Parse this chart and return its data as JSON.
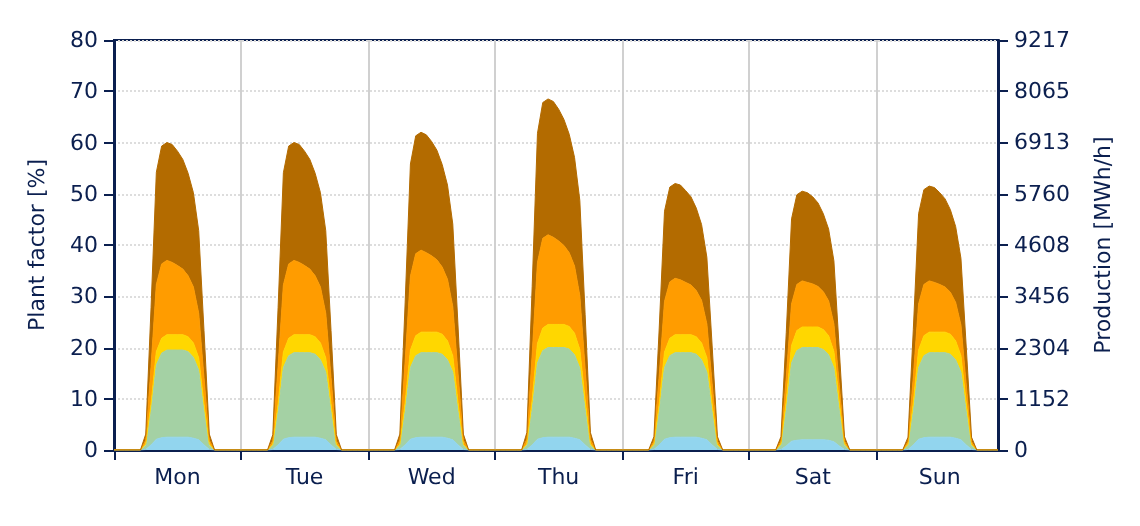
{
  "chart_data": {
    "type": "area",
    "stacked": true,
    "ylabel": "Plant factor [%]",
    "y2label": "Production [MWh/h]",
    "categories": [
      null,
      null,
      null,
      null,
      null,
      null,
      null,
      null,
      null,
      null,
      null,
      null,
      "Mon",
      null,
      null,
      null,
      null,
      null,
      null,
      null,
      null,
      null,
      null,
      null,
      null,
      null,
      null,
      null,
      null,
      null,
      null,
      null,
      null,
      null,
      null,
      null,
      "Tue",
      null,
      null,
      null,
      null,
      null,
      null,
      null,
      null,
      null,
      null,
      null,
      null,
      null,
      null,
      null,
      null,
      null,
      null,
      null,
      null,
      null,
      null,
      null,
      "Wed",
      null,
      null,
      null,
      null,
      null,
      null,
      null,
      null,
      null,
      null,
      null,
      null,
      null,
      null,
      null,
      null,
      null,
      null,
      null,
      null,
      null,
      null,
      null,
      "Thu",
      null,
      null,
      null,
      null,
      null,
      null,
      null,
      null,
      null,
      null,
      null,
      null,
      null,
      null,
      null,
      null,
      null,
      null,
      null,
      null,
      null,
      null,
      null,
      "Fri",
      null,
      null,
      null,
      null,
      null,
      null,
      null,
      null,
      null,
      null,
      null,
      null,
      null,
      null,
      null,
      null,
      null,
      null,
      null,
      null,
      null,
      null,
      null,
      "Sat",
      null,
      null,
      null,
      null,
      null,
      null,
      null,
      null,
      null,
      null,
      null,
      null,
      null,
      null,
      null,
      null,
      null,
      null,
      null,
      null,
      null,
      null,
      null,
      "Sun",
      null,
      null,
      null,
      null,
      null,
      null,
      null,
      null,
      null,
      null,
      null
    ],
    "ylim": [
      0,
      80
    ],
    "yticks": [
      0,
      10,
      20,
      30,
      40,
      50,
      60,
      70,
      80
    ],
    "y2lim": [
      0,
      9217
    ],
    "y2ticks": [
      0,
      1152,
      2304,
      3456,
      4608,
      5760,
      6913,
      8065,
      9217
    ],
    "grid": true,
    "series": [
      {
        "color": "#92d5ee",
        "values": [
          0,
          0,
          0,
          0,
          0,
          0,
          0.1,
          1,
          2.1,
          2.4,
          2.5,
          2.5,
          2.5,
          2.5,
          2.5,
          2.3,
          2,
          1,
          0.1,
          0,
          0,
          0,
          0,
          0,
          0,
          0,
          0,
          0,
          0,
          0,
          0.1,
          1,
          2.1,
          2.4,
          2.5,
          2.5,
          2.5,
          2.5,
          2.5,
          2.3,
          2,
          1,
          0.1,
          0,
          0,
          0,
          0,
          0,
          0,
          0,
          0,
          0,
          0,
          0,
          0.1,
          1,
          2.1,
          2.4,
          2.5,
          2.5,
          2.5,
          2.5,
          2.5,
          2.3,
          2,
          1,
          0.1,
          0,
          0,
          0,
          0,
          0,
          0,
          0,
          0,
          0,
          0,
          0,
          0.1,
          1,
          2.1,
          2.4,
          2.5,
          2.5,
          2.5,
          2.5,
          2.5,
          2.3,
          2,
          1,
          0.1,
          0,
          0,
          0,
          0,
          0,
          0,
          0,
          0,
          0,
          0,
          0,
          0.1,
          1,
          2.1,
          2.4,
          2.5,
          2.5,
          2.5,
          2.5,
          2.5,
          2.3,
          2,
          1,
          0.1,
          0,
          0,
          0,
          0,
          0,
          0,
          0,
          0,
          0,
          0,
          0,
          0.1,
          0.8,
          1.7,
          1.9,
          2,
          2,
          2,
          2,
          2,
          1.9,
          1.6,
          0.8,
          0.1,
          0,
          0,
          0,
          0,
          0,
          0,
          0,
          0,
          0,
          0,
          0,
          0.1,
          1,
          2.1,
          2.4,
          2.5,
          2.5,
          2.5,
          2.5,
          2.5,
          2.3,
          2,
          1,
          0.1,
          0,
          0,
          0,
          0,
          0
        ]
      },
      {
        "color": "#a4d1a4",
        "values": [
          0,
          0,
          0,
          0,
          0,
          0,
          0.9,
          6.8,
          14.5,
          16.5,
          17,
          17,
          17,
          17,
          16.7,
          15.8,
          13.6,
          6.8,
          0.9,
          0,
          0,
          0,
          0,
          0,
          0,
          0,
          0,
          0,
          0,
          0,
          0.8,
          6.6,
          14,
          16,
          16.5,
          16.5,
          16.5,
          16.5,
          16.2,
          15.3,
          13.2,
          6.6,
          0.8,
          0,
          0,
          0,
          0,
          0,
          0,
          0,
          0,
          0,
          0,
          0,
          0.8,
          6.6,
          14,
          16,
          16.5,
          16.5,
          16.5,
          16.5,
          16.2,
          15.3,
          13.2,
          6.6,
          0.8,
          0,
          0,
          0,
          0,
          0,
          0,
          0,
          0,
          0,
          0,
          0,
          0.9,
          7,
          14.9,
          17,
          17.5,
          17.5,
          17.5,
          17.5,
          17.2,
          16.3,
          14,
          7,
          0.9,
          0,
          0,
          0,
          0,
          0,
          0,
          0,
          0,
          0,
          0,
          0,
          0.8,
          6.6,
          14,
          16,
          16.5,
          16.5,
          16.5,
          16.5,
          16.2,
          15.3,
          13.2,
          6.6,
          0.8,
          0,
          0,
          0,
          0,
          0,
          0,
          0,
          0,
          0,
          0,
          0,
          0.9,
          7.2,
          15.3,
          17.5,
          18,
          18,
          18,
          18,
          17.6,
          16.7,
          14.4,
          7.2,
          0.9,
          0,
          0,
          0,
          0,
          0,
          0,
          0,
          0,
          0,
          0,
          0,
          0.8,
          6.6,
          14,
          16,
          16.5,
          16.5,
          16.5,
          16.5,
          16.2,
          15.3,
          13.2,
          6.6,
          0.8,
          0,
          0,
          0,
          0,
          0
        ]
      },
      {
        "color": "#ffd700",
        "values": [
          0,
          0,
          0,
          0,
          0,
          0,
          0.2,
          1.2,
          2.6,
          2.9,
          3,
          3,
          3,
          3,
          2.9,
          2.8,
          2.4,
          1.2,
          0.2,
          0,
          0,
          0,
          0,
          0,
          0,
          0,
          0,
          0,
          0,
          0,
          0.2,
          1.4,
          3,
          3.4,
          3.5,
          3.5,
          3.5,
          3.5,
          3.4,
          3.3,
          2.8,
          1.4,
          0.2,
          0,
          0,
          0,
          0,
          0,
          0,
          0,
          0,
          0,
          0,
          0,
          0.2,
          1.6,
          3.4,
          3.9,
          4,
          4,
          4,
          4,
          3.9,
          3.7,
          3.2,
          1.6,
          0.2,
          0,
          0,
          0,
          0,
          0,
          0,
          0,
          0,
          0,
          0,
          0,
          0.2,
          1.8,
          3.8,
          4.4,
          4.5,
          4.5,
          4.5,
          4.5,
          4.4,
          4.2,
          3.6,
          1.8,
          0.2,
          0,
          0,
          0,
          0,
          0,
          0,
          0,
          0,
          0,
          0,
          0,
          0.2,
          1.4,
          3,
          3.4,
          3.5,
          3.5,
          3.5,
          3.5,
          3.4,
          3.3,
          2.8,
          1.4,
          0.2,
          0,
          0,
          0,
          0,
          0,
          0,
          0,
          0,
          0,
          0,
          0,
          0.2,
          1.6,
          3.4,
          3.9,
          4,
          4,
          4,
          4,
          3.9,
          3.7,
          3.2,
          1.6,
          0.2,
          0,
          0,
          0,
          0,
          0,
          0,
          0,
          0,
          0,
          0,
          0,
          0.2,
          1.6,
          3.4,
          3.9,
          4,
          4,
          4,
          4,
          3.9,
          3.7,
          3.2,
          1.6,
          0.2,
          0,
          0,
          0,
          0,
          0
        ]
      },
      {
        "color": "#ff9c00",
        "values": [
          0,
          0,
          0,
          0,
          0,
          0,
          0.7,
          7.3,
          13.1,
          14.5,
          14.5,
          14.1,
          13.5,
          12.8,
          11.9,
          10.9,
          8.7,
          5.1,
          0.7,
          0,
          0,
          0,
          0,
          0,
          0,
          0,
          0,
          0,
          0,
          0,
          0.7,
          7.3,
          13.1,
          14.5,
          14.5,
          14.1,
          13.5,
          12.8,
          11.9,
          10.9,
          8.7,
          5.1,
          0.7,
          0,
          0,
          0,
          0,
          0,
          0,
          0,
          0,
          0,
          0,
          0,
          0.8,
          8,
          14.4,
          16,
          16,
          15.5,
          14.9,
          14.1,
          13.1,
          12,
          9.6,
          5.6,
          0.8,
          0,
          0,
          0,
          0,
          0,
          0,
          0,
          0,
          0,
          0,
          0,
          0.9,
          8.8,
          15.8,
          17.5,
          17.5,
          17,
          16.3,
          15.4,
          14.4,
          13.1,
          10.5,
          6.1,
          0.9,
          0,
          0,
          0,
          0,
          0,
          0,
          0,
          0,
          0,
          0,
          0,
          0.6,
          5.5,
          9.9,
          11,
          11,
          10.7,
          10.2,
          9.7,
          9,
          8.3,
          6.6,
          3.9,
          0.6,
          0,
          0,
          0,
          0,
          0,
          0,
          0,
          0,
          0,
          0,
          0,
          0.5,
          4.5,
          8.1,
          9,
          9,
          8.7,
          8.4,
          7.9,
          7.4,
          6.8,
          5.4,
          3.2,
          0.5,
          0,
          0,
          0,
          0,
          0,
          0,
          0,
          0,
          0,
          0,
          0,
          0.5,
          5,
          9,
          10,
          10,
          9.7,
          9.3,
          8.8,
          8.2,
          7.5,
          6,
          3.5,
          0.5,
          0,
          0,
          0,
          0,
          0
        ]
      },
      {
        "color": "#b36b00",
        "values": [
          0,
          0,
          0,
          0,
          0,
          0,
          1.2,
          11.5,
          21.9,
          23,
          23,
          23,
          22.3,
          21.4,
          20,
          18.4,
          16.1,
          9.2,
          1.2,
          0,
          0,
          0,
          0,
          0,
          0,
          0,
          0,
          0,
          0,
          0,
          1.2,
          11.5,
          21.9,
          23,
          23,
          23,
          22.3,
          21.4,
          20,
          18.4,
          16.1,
          9.2,
          1.2,
          0,
          0,
          0,
          0,
          0,
          0,
          0,
          0,
          0,
          0,
          0,
          1.2,
          11.5,
          21.9,
          23,
          23,
          23,
          22.3,
          21.4,
          20,
          18.4,
          16.1,
          9.2,
          1.2,
          0,
          0,
          0,
          0,
          0,
          0,
          0,
          0,
          0,
          0,
          0,
          1.3,
          13.3,
          25.2,
          26.5,
          26.5,
          26.5,
          25.7,
          24.6,
          23.1,
          21.2,
          18.6,
          10.6,
          1.3,
          0,
          0,
          0,
          0,
          0,
          0,
          0,
          0,
          0,
          0,
          0,
          0.9,
          9.3,
          17.6,
          18.5,
          18.5,
          18.5,
          17.9,
          17.2,
          16.1,
          14.8,
          13,
          7.4,
          0.9,
          0,
          0,
          0,
          0,
          0,
          0,
          0,
          0,
          0,
          0,
          0,
          0.9,
          8.8,
          16.6,
          17.5,
          17.5,
          17.5,
          17,
          16.3,
          15.2,
          14,
          12.3,
          7,
          0.9,
          0,
          0,
          0,
          0,
          0,
          0,
          0,
          0,
          0,
          0,
          0,
          0.9,
          9.3,
          17.6,
          18.5,
          18.5,
          18.5,
          17.9,
          17.2,
          16.1,
          14.8,
          13,
          7.4,
          0.9,
          0,
          0,
          0,
          0,
          0
        ]
      }
    ]
  }
}
